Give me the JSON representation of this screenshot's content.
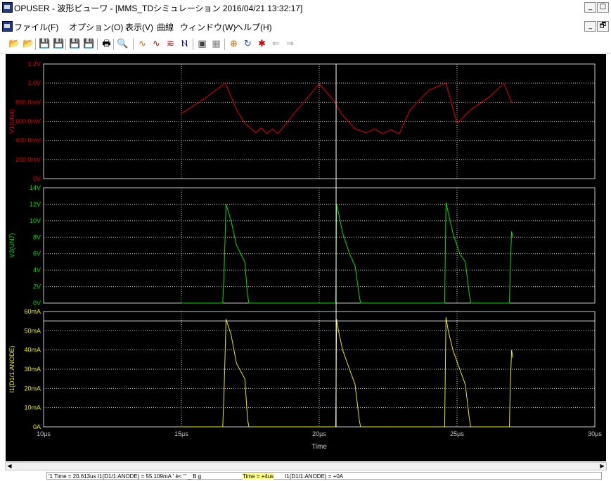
{
  "window": {
    "title": "OPUSER - 波形ビューワ - [MMS_TDシミュレーション 2016/04/21 13:32:17]",
    "min_glyph": "_",
    "restore_glyph": "□"
  },
  "menu": {
    "items": [
      "ファイル(F)",
      "オプション(O)",
      "表示(V)",
      "曲線",
      "ウィンドウ(W)",
      "ヘルプ(H)"
    ],
    "min_glyph": "_",
    "restore_glyph": "🗗"
  },
  "toolbar": {
    "buttons": [
      {
        "name": "open-folder-icon",
        "glyph": "📂",
        "color": "#c08000"
      },
      {
        "name": "open-file-icon",
        "glyph": "📂",
        "color": "#c08000"
      },
      {
        "name": "save-icon",
        "glyph": "💾",
        "color": "#000000"
      },
      {
        "name": "save-all-icon",
        "glyph": "💾",
        "color": "#000000"
      },
      {
        "name": "save-as-icon",
        "glyph": "💾",
        "color": "#000000"
      },
      {
        "name": "save-copy-icon",
        "glyph": "💾",
        "color": "#000000"
      },
      {
        "name": "print-icon",
        "glyph": "🖶",
        "color": "#000000"
      },
      {
        "name": "zoom-icon",
        "glyph": "🔍",
        "color": "#000000"
      },
      {
        "name": "wave-icon",
        "glyph": "∿",
        "color": "#e06000"
      },
      {
        "name": "wave-multi-icon",
        "glyph": "∿",
        "color": "#c00000"
      },
      {
        "name": "wave-grid-icon",
        "glyph": "≋",
        "color": "#c00000"
      },
      {
        "name": "wave-line-icon",
        "glyph": "Ⲛ",
        "color": "#000080"
      },
      {
        "name": "settings-icon",
        "glyph": "▣",
        "color": "#404040"
      },
      {
        "name": "grid-icon",
        "glyph": "▦",
        "color": "#808080"
      },
      {
        "name": "cursor-icon",
        "glyph": "⊕",
        "color": "#c06000"
      },
      {
        "name": "cycle-icon",
        "glyph": "↻",
        "color": "#2050c0"
      },
      {
        "name": "marker-icon",
        "glyph": "✱",
        "color": "#c00000"
      },
      {
        "name": "back-arrow-icon",
        "glyph": "⇐",
        "color": "#a0a0a0"
      },
      {
        "name": "forward-arrow-icon",
        "glyph": "⇒",
        "color": "#a0a0a0"
      }
    ]
  },
  "plot": {
    "background": "#000000",
    "grid_color": "#c8c8c8",
    "axis_color": "#c8c8c8",
    "x_axis_label": "Time",
    "x_tick_labels": [
      "10µs",
      "15µs",
      "20µs",
      "25µs",
      "30µs"
    ],
    "cursor_time_us": 20.613
  },
  "chart_data": [
    {
      "type": "line",
      "ylabel": "V1(UN4)",
      "color": "#e00000",
      "ylim": [
        0,
        1.2
      ],
      "y_ticks": [
        0,
        0.2,
        0.4,
        0.6,
        0.8,
        1.0,
        1.2
      ],
      "y_tick_labels": [
        "0V",
        "200.0mV",
        "400.0mV",
        "600.0mV",
        "800.0mV",
        "1.0V",
        "1.2V"
      ],
      "xlim": [
        10,
        30
      ],
      "series": [
        {
          "x": [
            15.0,
            15.8,
            16.6,
            17.0,
            17.3,
            17.5,
            17.7,
            17.9,
            18.1,
            18.3,
            18.5,
            19.2,
            20.0,
            20.5,
            20.8,
            21.3,
            21.7,
            22.0,
            22.3,
            22.6,
            22.9,
            23.3,
            24.0,
            24.6,
            25.0,
            25.5,
            26.2,
            26.7,
            27.0
          ],
          "y": [
            0.68,
            0.83,
            1.0,
            0.72,
            0.58,
            0.53,
            0.48,
            0.53,
            0.47,
            0.52,
            0.47,
            0.72,
            0.99,
            0.83,
            0.68,
            0.52,
            0.48,
            0.52,
            0.47,
            0.51,
            0.47,
            0.72,
            0.93,
            1.0,
            0.58,
            0.72,
            0.86,
            1.0,
            0.79
          ]
        }
      ]
    },
    {
      "type": "line",
      "ylabel": "V2(UN7)",
      "color": "#00dd00",
      "ylim": [
        0,
        14
      ],
      "y_ticks": [
        0,
        2,
        4,
        6,
        8,
        10,
        12,
        14
      ],
      "y_tick_labels": [
        "0V",
        "2V",
        "4V",
        "6V",
        "8V",
        "10V",
        "12V",
        "14V"
      ],
      "xlim": [
        10,
        30
      ],
      "series": [
        {
          "x": [
            15.0,
            16.5,
            16.55,
            16.62,
            16.8,
            17.0,
            17.3,
            17.4,
            17.45,
            20.6,
            20.63,
            20.7,
            20.85,
            21.1,
            21.3,
            21.45,
            21.5,
            24.55,
            24.6,
            24.68,
            24.85,
            25.1,
            25.3,
            25.45,
            25.5,
            26.9,
            26.93,
            26.98,
            27.02
          ],
          "y": [
            0,
            0,
            4,
            12,
            10,
            7,
            5,
            1,
            0,
            0,
            12,
            11,
            8.5,
            6,
            4.5,
            1,
            0,
            0,
            12.2,
            11,
            8.5,
            6,
            5,
            1,
            0,
            0,
            4,
            8.7,
            8
          ]
        }
      ]
    },
    {
      "type": "line",
      "ylabel": "I1(D1/1:ANODE)",
      "color": "#e8e800",
      "ylim": [
        0,
        60
      ],
      "y_ticks": [
        0,
        10,
        20,
        30,
        40,
        50,
        60
      ],
      "y_tick_labels": [
        "0A",
        "10mA",
        "20mA",
        "30mA",
        "40mA",
        "50mA",
        "60mA"
      ],
      "xlim": [
        10,
        30
      ],
      "cursor_hline": 55.109,
      "series": [
        {
          "x": [
            15.0,
            16.5,
            16.55,
            16.62,
            16.8,
            17.0,
            17.3,
            17.4,
            17.45,
            20.6,
            20.63,
            20.7,
            20.85,
            21.1,
            21.3,
            21.45,
            21.5,
            24.55,
            24.6,
            24.68,
            24.85,
            25.1,
            25.3,
            25.45,
            25.5,
            26.9,
            26.93,
            26.98,
            27.02
          ],
          "y": [
            0,
            0,
            20,
            56,
            48,
            33,
            25,
            4,
            0,
            0,
            56,
            50,
            40,
            30,
            22,
            4,
            0,
            0,
            57,
            50,
            40,
            30,
            22,
            4,
            0,
            0,
            20,
            40,
            36
          ]
        }
      ]
    }
  ],
  "status": {
    "left": "'1 Time = 20.613us  I1(D1/1:ANODE) = 55.109mA ' è< \"' _ B g",
    "mid": "Time = +4us",
    "right": "I1(D1/1:ANODE) = +0A"
  }
}
